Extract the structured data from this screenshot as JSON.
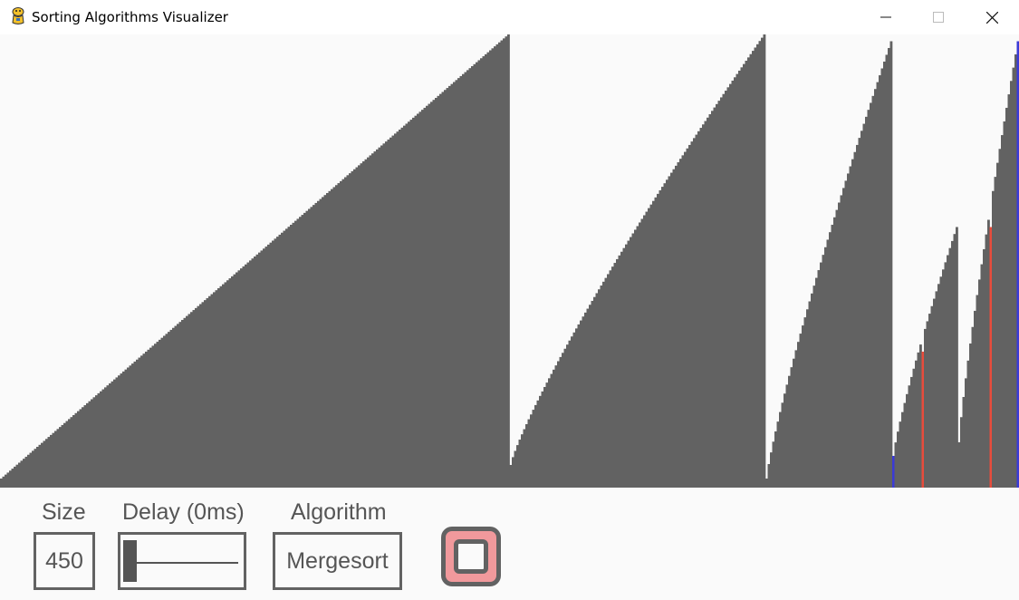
{
  "window": {
    "title": "Sorting Algorithms Visualizer",
    "app_icon": "python-snake-icon"
  },
  "controls": {
    "size": {
      "label": "Size",
      "value": "450"
    },
    "delay": {
      "label": "Delay (0ms)",
      "value_ms": 0
    },
    "algorithm": {
      "label": "Algorithm",
      "value": "Mergesort"
    },
    "stop_button": {
      "icon": "stop-icon",
      "fill_color": "#f1999c"
    }
  },
  "colors": {
    "bar": "#626262",
    "compare_red": "#e74c3c",
    "compare_blue": "#3b3bd6",
    "canvas_bg": "#fafafa"
  },
  "bars": {
    "count": 450,
    "runs": [
      {
        "start": 0,
        "end": 224,
        "from": 0.02,
        "to": 1.0
      },
      {
        "start": 225,
        "end": 337,
        "from": 0.05,
        "to": 1.0
      },
      {
        "start": 338,
        "end": 393,
        "from": 0.02,
        "to": 0.985
      },
      {
        "start": 394,
        "end": 422,
        "from": 0.07,
        "to": 0.575
      },
      {
        "start": 423,
        "end": 449,
        "from": 0.1,
        "to": 0.985
      }
    ],
    "highlights": [
      {
        "index": 394,
        "color": "blue"
      },
      {
        "index": 407,
        "color": "red",
        "value": 0.3
      },
      {
        "index": 437,
        "color": "red",
        "value": 0.575
      },
      {
        "index": 449,
        "color": "blue"
      }
    ]
  }
}
